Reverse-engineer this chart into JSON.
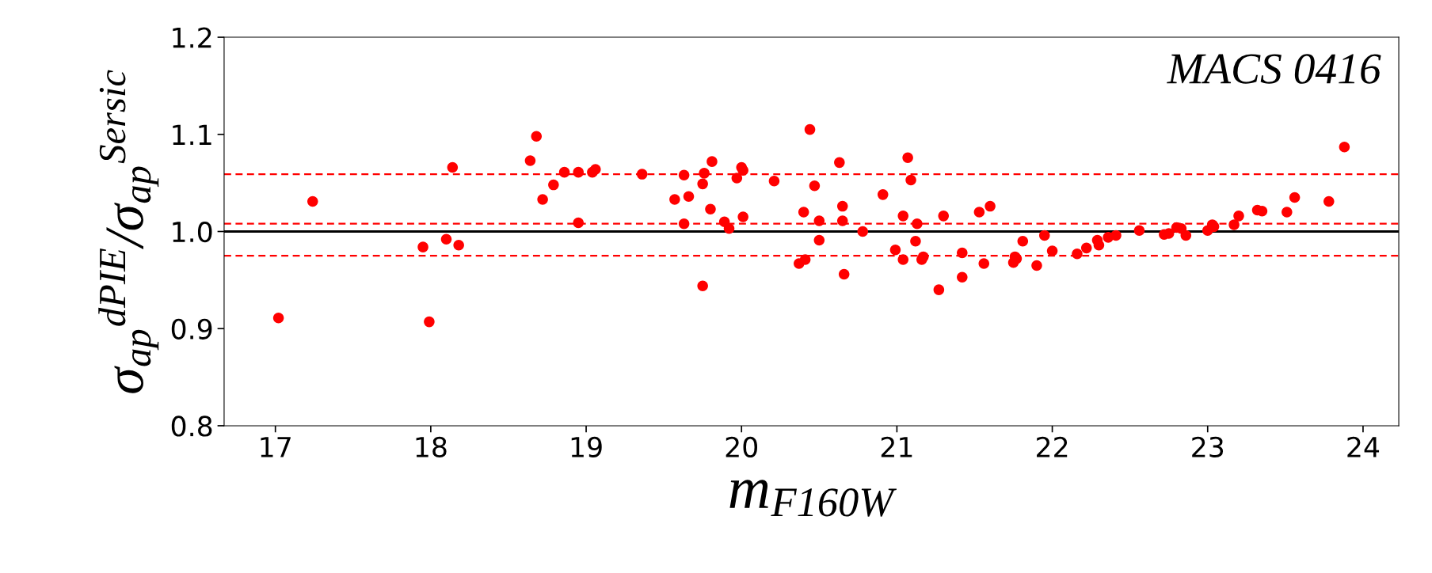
{
  "chart_data": {
    "type": "scatter",
    "xlabel": "m$_{F160W}$",
    "ylabel": "σ$_{ap}$$^{dPIE}$/σ$_{ap}$$^{Sersic}$",
    "annotations": [
      "MACS 0416"
    ],
    "xlim": [
      16.67,
      24.23
    ],
    "ylim": [
      0.8,
      1.2
    ],
    "xticks": [
      17,
      18,
      19,
      20,
      21,
      22,
      23,
      24
    ],
    "yticks": [
      {
        "value": 0.8,
        "label": "0.8"
      },
      {
        "value": 0.9,
        "label": "0.9"
      },
      {
        "value": 1.0,
        "label": "1.0"
      },
      {
        "value": 1.1,
        "label": "1.1"
      },
      {
        "value": 1.2,
        "label": "1.2"
      }
    ],
    "grid": false,
    "marker": "circle",
    "ref_lines": [
      {
        "axis": "y",
        "value": 1.0,
        "label": null,
        "color": "#000000",
        "line_style": "solid"
      },
      {
        "axis": "y",
        "value": 1.059,
        "label": null,
        "color": "#ff0000",
        "line_style": "dashed"
      },
      {
        "axis": "y",
        "value": 1.008,
        "label": null,
        "color": "#ff0000",
        "line_style": "dashed"
      },
      {
        "axis": "y",
        "value": 0.975,
        "label": null,
        "color": "#ff0000",
        "line_style": "dashed"
      }
    ],
    "series": [
      {
        "color": "#ff0000",
        "x": [
          17.02,
          17.24,
          17.95,
          17.99,
          18.1,
          18.18,
          18.14,
          18.64,
          18.68,
          18.72,
          18.79,
          18.86,
          18.95,
          18.95,
          19.04,
          19.06,
          19.36,
          19.57,
          19.63,
          19.63,
          19.66,
          19.75,
          19.75,
          19.76,
          19.81,
          19.8,
          19.89,
          19.92,
          19.97,
          20.0,
          20.01,
          20.01,
          20.21,
          20.4,
          20.37,
          20.41,
          20.44,
          20.47,
          20.5,
          20.5,
          20.63,
          20.65,
          20.65,
          20.66,
          20.78,
          20.91,
          20.99,
          21.04,
          21.04,
          21.07,
          21.09,
          21.12,
          21.13,
          21.16,
          21.17,
          21.27,
          21.3,
          21.42,
          21.42,
          21.53,
          21.56,
          21.6,
          21.75,
          21.76,
          21.77,
          21.81,
          21.9,
          21.95,
          22.0,
          22.16,
          22.22,
          22.29,
          22.3,
          22.36,
          22.41,
          22.56,
          22.72,
          22.75,
          22.8,
          22.83,
          22.86,
          23.0,
          23.03,
          23.04,
          23.17,
          23.2,
          23.32,
          23.35,
          23.51,
          23.56,
          23.78,
          23.88
        ],
        "values": [
          0.911,
          1.031,
          0.984,
          0.907,
          0.992,
          0.986,
          1.066,
          1.073,
          1.098,
          1.033,
          1.048,
          1.061,
          1.061,
          1.009,
          1.061,
          1.064,
          1.059,
          1.033,
          1.058,
          1.008,
          1.036,
          0.944,
          1.049,
          1.06,
          1.072,
          1.023,
          1.01,
          1.003,
          1.055,
          1.066,
          1.063,
          1.015,
          1.052,
          1.02,
          0.967,
          0.971,
          1.105,
          1.047,
          1.011,
          0.991,
          1.071,
          1.026,
          1.011,
          0.956,
          1.0,
          1.038,
          0.981,
          1.016,
          0.971,
          1.076,
          1.053,
          0.99,
          1.008,
          0.971,
          0.974,
          0.94,
          1.016,
          0.978,
          0.953,
          1.02,
          0.967,
          1.026,
          0.968,
          0.974,
          0.972,
          0.99,
          0.965,
          0.996,
          0.98,
          0.977,
          0.983,
          0.991,
          0.986,
          0.994,
          0.996,
          1.001,
          0.997,
          0.998,
          1.004,
          1.003,
          0.996,
          1.001,
          1.007,
          1.005,
          1.007,
          1.016,
          1.022,
          1.021,
          1.02,
          1.035,
          1.031,
          1.087
        ]
      }
    ]
  }
}
